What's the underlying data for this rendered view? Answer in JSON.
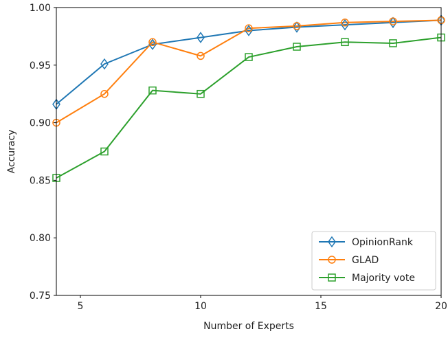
{
  "chart_data": {
    "type": "line",
    "title": "",
    "xlabel": "Number of Experts",
    "ylabel": "Accuracy",
    "xlim": [
      4,
      20
    ],
    "ylim": [
      0.75,
      1.0
    ],
    "xticks": [
      5,
      10,
      15,
      20
    ],
    "xtick_labels": [
      "5",
      "10",
      "15",
      "20"
    ],
    "yticks": [
      0.75,
      0.8,
      0.85,
      0.9,
      0.95,
      1.0
    ],
    "ytick_labels": [
      "0.75",
      "0.80",
      "0.85",
      "0.90",
      "0.95",
      "1.00"
    ],
    "grid": false,
    "legend_position": "lower-right",
    "x": [
      4,
      6,
      8,
      10,
      12,
      14,
      16,
      18,
      20
    ],
    "series": [
      {
        "name": "OpinionRank",
        "color": "#1f77b4",
        "marker": "diamond",
        "values": [
          0.916,
          0.951,
          0.968,
          0.974,
          0.98,
          0.983,
          0.985,
          0.987,
          0.989
        ]
      },
      {
        "name": "GLAD",
        "color": "#ff7f0e",
        "marker": "circle",
        "values": [
          0.9,
          0.925,
          0.97,
          0.958,
          0.982,
          0.984,
          0.987,
          0.988,
          0.989
        ]
      },
      {
        "name": "Majority vote",
        "color": "#2ca02c",
        "marker": "square",
        "values": [
          0.852,
          0.875,
          0.928,
          0.925,
          0.957,
          0.966,
          0.97,
          0.969,
          0.974
        ]
      }
    ]
  }
}
